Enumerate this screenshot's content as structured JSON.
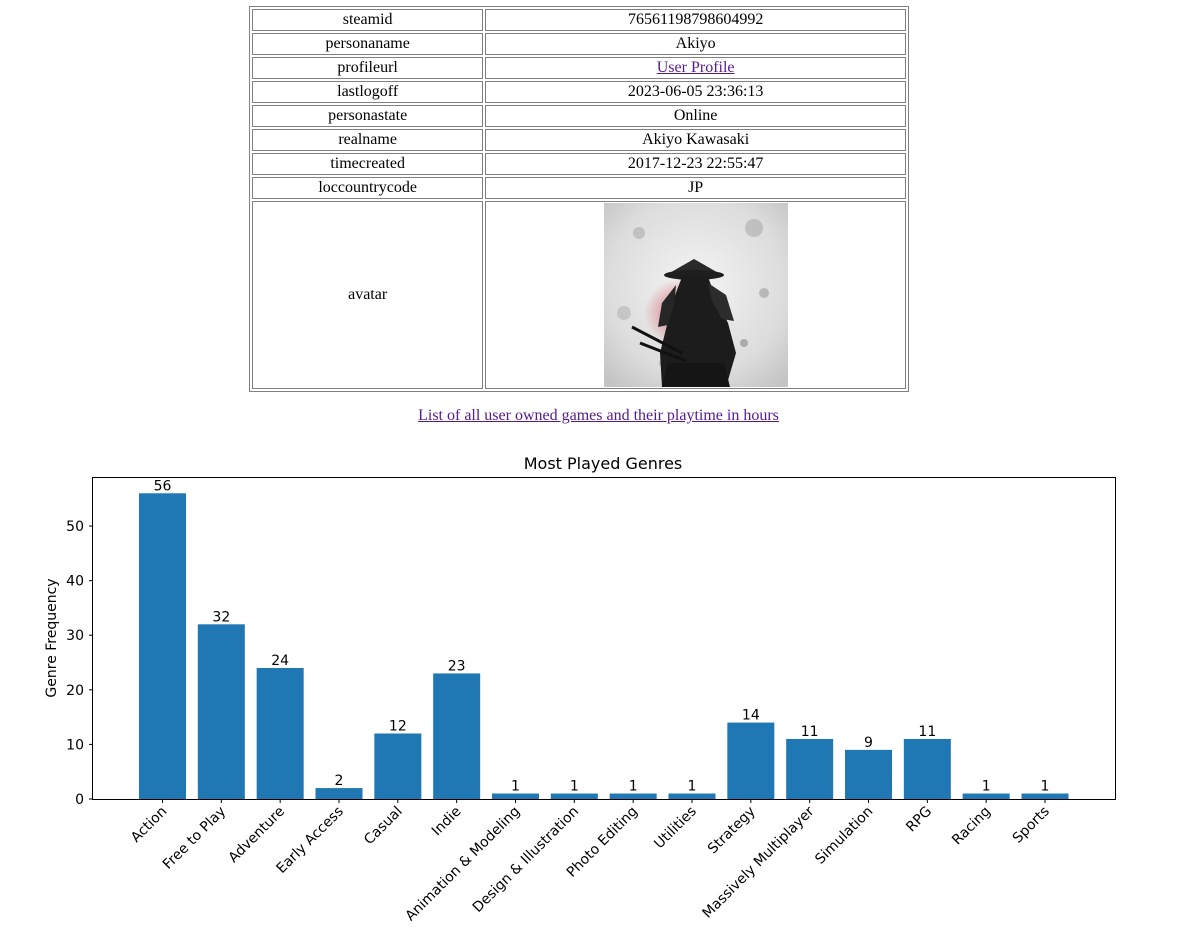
{
  "profile": {
    "rows": [
      {
        "key": "steamid",
        "value": "76561198798604992"
      },
      {
        "key": "personaname",
        "value": "Akiyo"
      },
      {
        "key": "profileurl",
        "value": "User Profile"
      },
      {
        "key": "lastlogoff",
        "value": "2023-06-05 23:36:13"
      },
      {
        "key": "personastate",
        "value": "Online"
      },
      {
        "key": "realname",
        "value": "Akiyo Kawasaki"
      },
      {
        "key": "timecreated",
        "value": "2017-12-23 22:55:47"
      },
      {
        "key": "loccountrycode",
        "value": "JP"
      }
    ],
    "avatar_label": "avatar"
  },
  "games_link": "List of all user owned games and their playtime in hours",
  "colors": {
    "bar": "#1f77b4",
    "link": "#551a8b"
  },
  "chart_data": {
    "type": "bar",
    "title": "Most Played Genres",
    "xlabel": "",
    "ylabel": "Genre Frequency",
    "categories": [
      "Action",
      "Free to Play",
      "Adventure",
      "Early Access",
      "Casual",
      "Indie",
      "Animation & Modeling",
      "Design & Illustration",
      "Photo Editing",
      "Utilities",
      "Strategy",
      "Massively Multiplayer",
      "Simulation",
      "RPG",
      "Racing",
      "Sports"
    ],
    "values": [
      56,
      32,
      24,
      2,
      12,
      23,
      1,
      1,
      1,
      1,
      14,
      11,
      9,
      11,
      1,
      1
    ],
    "ylim": [
      0,
      58.8
    ],
    "yticks": [
      0,
      10,
      20,
      30,
      40,
      50
    ],
    "grid": false
  }
}
